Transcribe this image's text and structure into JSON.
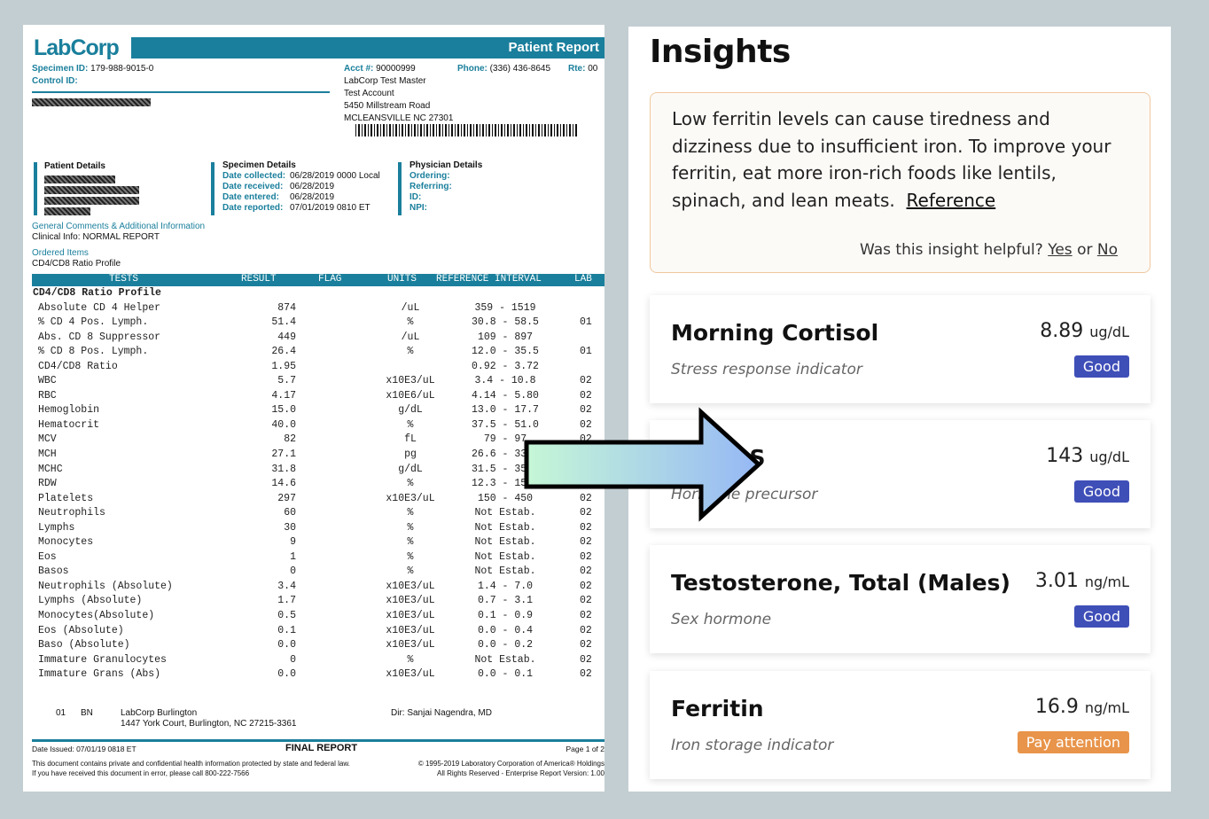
{
  "report": {
    "logo": "LabCorp",
    "title": "Patient Report",
    "specimen_id_label": "Specimen ID:",
    "specimen_id": "179-988-9015-0",
    "control_id_label": "Control ID:",
    "acct_label": "Acct #:",
    "acct": "90000999",
    "phone_label": "Phone:",
    "phone": "(336) 436-8645",
    "rte_label": "Rte:",
    "rte": "00",
    "address": [
      "LabCorp Test Master",
      "Test Account",
      "5450 Millstream Road",
      "MCLEANSVILLE NC 27301"
    ],
    "patient_details": "Patient Details",
    "specimen_details": "Specimen Details",
    "specimen_fields": [
      {
        "label": "Date collected:",
        "value": "06/28/2019  0000 Local"
      },
      {
        "label": "Date received:",
        "value": "06/28/2019"
      },
      {
        "label": "Date entered:",
        "value": "06/28/2019"
      },
      {
        "label": "Date reported:",
        "value": "07/01/2019  0810 ET"
      }
    ],
    "physician_details": "Physician Details",
    "physician_fields": [
      "Ordering:",
      "Referring:",
      "ID:",
      "NPI:"
    ],
    "comments_title": "General Comments & Additional Information",
    "clinical_label": "Clinical Info:",
    "clinical_value": " NORMAL REPORT",
    "ordered_title": "Ordered Items",
    "ordered_value": "CD4/CD8 Ratio Profile",
    "columns": [
      "TESTS",
      "RESULT",
      "FLAG",
      "UNITS",
      "REFERENCE INTERVAL",
      "LAB"
    ],
    "profile": "CD4/CD8 Ratio Profile",
    "rows": [
      [
        "Absolute CD 4 Helper",
        "874",
        "/uL",
        "359 - 1519",
        ""
      ],
      [
        "% CD 4 Pos. Lymph.",
        "51.4",
        "%",
        "30.8 - 58.5",
        "01"
      ],
      [
        "Abs. CD 8 Suppressor",
        "449",
        "/uL",
        "109 - 897",
        ""
      ],
      [
        "% CD 8 Pos. Lymph.",
        "26.4",
        "%",
        "12.0 - 35.5",
        "01"
      ],
      [
        "CD4/CD8 Ratio",
        "1.95",
        "",
        "0.92 - 3.72",
        ""
      ],
      [
        "WBC",
        "5.7",
        "x10E3/uL",
        "3.4 - 10.8",
        "02"
      ],
      [
        "RBC",
        "4.17",
        "x10E6/uL",
        "4.14 - 5.80",
        "02"
      ],
      [
        "Hemoglobin",
        "15.0",
        "g/dL",
        "13.0 - 17.7",
        "02"
      ],
      [
        "Hematocrit",
        "40.0",
        "%",
        "37.5 - 51.0",
        "02"
      ],
      [
        "MCV",
        "82",
        "fL",
        "79 - 97",
        "02"
      ],
      [
        "MCH",
        "27.1",
        "pg",
        "26.6 - 33.0",
        "02"
      ],
      [
        "MCHC",
        "31.8",
        "g/dL",
        "31.5 - 35.7",
        "02"
      ],
      [
        "RDW",
        "14.6",
        "%",
        "12.3 - 15.4",
        "02"
      ],
      [
        "Platelets",
        "297",
        "x10E3/uL",
        "150 - 450",
        "02"
      ],
      [
        "Neutrophils",
        "60",
        "%",
        "Not Estab.",
        "02"
      ],
      [
        "Lymphs",
        "30",
        "%",
        "Not Estab.",
        "02"
      ],
      [
        "Monocytes",
        "9",
        "%",
        "Not Estab.",
        "02"
      ],
      [
        "Eos",
        "1",
        "%",
        "Not Estab.",
        "02"
      ],
      [
        "Basos",
        "0",
        "%",
        "Not Estab.",
        "02"
      ],
      [
        "Neutrophils (Absolute)",
        "3.4",
        "x10E3/uL",
        "1.4 - 7.0",
        "02"
      ],
      [
        "Lymphs (Absolute)",
        "1.7",
        "x10E3/uL",
        "0.7 - 3.1",
        "02"
      ],
      [
        "Monocytes(Absolute)",
        "0.5",
        "x10E3/uL",
        "0.1 - 0.9",
        "02"
      ],
      [
        "Eos (Absolute)",
        "0.1",
        "x10E3/uL",
        "0.0 - 0.4",
        "02"
      ],
      [
        "Baso (Absolute)",
        "0.0",
        "x10E3/uL",
        "0.0 - 0.2",
        "02"
      ],
      [
        "Immature Granulocytes",
        "0",
        "%",
        "Not Estab.",
        "02"
      ],
      [
        "Immature Grans (Abs)",
        "0.0",
        "x10E3/uL",
        "0.0 - 0.1",
        "02"
      ]
    ],
    "lab_code": "01",
    "lab_abbr": "BN",
    "lab_name": "LabCorp Burlington",
    "lab_address": "1447 York Court, Burlington, NC 27215-3361",
    "lab_director": "Dir: Sanjai Nagendra, MD",
    "date_issued": "Date Issued: 07/01/19 0818 ET",
    "final": "FINAL REPORT",
    "page": "Page 1 of 2",
    "disclaimer1": "This document contains private and confidential health information protected by state and federal law.",
    "disclaimer2": "If you have received this document in error, please call 800-222-7566",
    "copyright1": "© 1995-2019 Laboratory Corporation of America® Holdings",
    "copyright2": "All Rights Reserved - Enterprise Report Version: 1.00"
  },
  "insights": {
    "title": "Insights",
    "text": "Low ferritin levels can cause tiredness and dizziness due to insufficient iron. To improve your ferritin, eat more iron-rich foods like lentils, spinach, and lean meats.",
    "reference": "Reference",
    "helpful": "Was this insight helpful?",
    "yes": "Yes",
    "or": "or",
    "no": "No",
    "cards": [
      {
        "title": "Morning Cortisol",
        "subtitle": "Stress response indicator",
        "value": "8.89",
        "unit": "ug/dL",
        "status": "Good",
        "color": "#3f4fb8"
      },
      {
        "title": "DHEA-S",
        "subtitle": "Hormone precursor",
        "value": "143",
        "unit": "ug/dL",
        "status": "Good",
        "color": "#3f4fb8"
      },
      {
        "title": "Testosterone, Total (Males)",
        "subtitle": "Sex hormone",
        "value": "3.01",
        "unit": "ng/mL",
        "status": "Good",
        "color": "#3f4fb8"
      },
      {
        "title": "Ferritin",
        "subtitle": "Iron storage indicator",
        "value": "16.9",
        "unit": "ng/mL",
        "status": "Pay attention",
        "color": "#e8944a"
      }
    ]
  },
  "arrow_icon": "right-arrow-icon"
}
